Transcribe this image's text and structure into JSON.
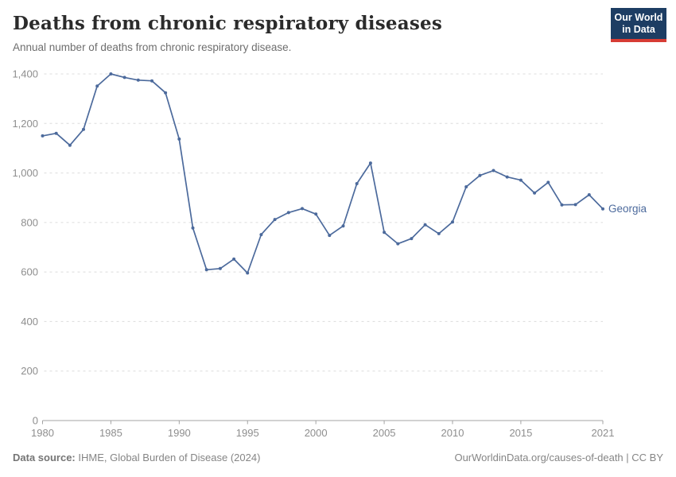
{
  "header": {
    "title": "Deaths from chronic respiratory diseases",
    "subtitle": "Annual number of deaths from chronic respiratory disease.",
    "logo": {
      "line1": "Our World",
      "line2": "in Data"
    }
  },
  "chart_data": {
    "type": "line",
    "title": "Deaths from chronic respiratory diseases",
    "subtitle": "Annual number of deaths from chronic respiratory disease.",
    "series": [
      {
        "name": "Georgia",
        "x": [
          1980,
          1981,
          1982,
          1983,
          1984,
          1985,
          1986,
          1987,
          1988,
          1989,
          1990,
          1991,
          1992,
          1993,
          1994,
          1995,
          1996,
          1997,
          1998,
          1999,
          2000,
          2001,
          2002,
          2003,
          2004,
          2005,
          2006,
          2007,
          2008,
          2009,
          2010,
          2011,
          2012,
          2013,
          2014,
          2015,
          2016,
          2017,
          2018,
          2019,
          2020,
          2021
        ],
        "values": [
          1150,
          1160,
          1112,
          1176,
          1351,
          1400,
          1386,
          1375,
          1372,
          1324,
          1137,
          778,
          609,
          614,
          652,
          596,
          751,
          812,
          840,
          856,
          834,
          748,
          786,
          957,
          1040,
          760,
          714,
          735,
          791,
          755,
          802,
          944,
          990,
          1010,
          984,
          971,
          919,
          962,
          871,
          872,
          912,
          855
        ]
      }
    ],
    "xlim": [
      1980,
      2021
    ],
    "ylim": [
      0,
      1400
    ],
    "xticks": [
      1980,
      1985,
      1990,
      1995,
      2000,
      2005,
      2010,
      2015,
      2021
    ],
    "xtick_labels": [
      "1980",
      "1985",
      "1990",
      "1995",
      "2000",
      "2005",
      "2010",
      "2015",
      "2021"
    ],
    "yticks": [
      0,
      200,
      400,
      600,
      800,
      1000,
      1200,
      1400
    ],
    "ytick_labels": [
      "0",
      "200",
      "400",
      "600",
      "800",
      "1,000",
      "1,200",
      "1,400"
    ],
    "grid": "horizontal-dashed",
    "legend_position": "end-of-line-label",
    "line_color": "#4C6A9C",
    "grid_color": "#dcdcdc",
    "axis_color": "#a3a3a3",
    "tick_label_color": "#8e8e8e",
    "entity_label": "Georgia"
  },
  "footer": {
    "data_source_label": "Data source:",
    "data_source_value": " IHME, Global Burden of Disease (2024)",
    "attribution": "OurWorldinData.org/causes-of-death | CC BY"
  }
}
